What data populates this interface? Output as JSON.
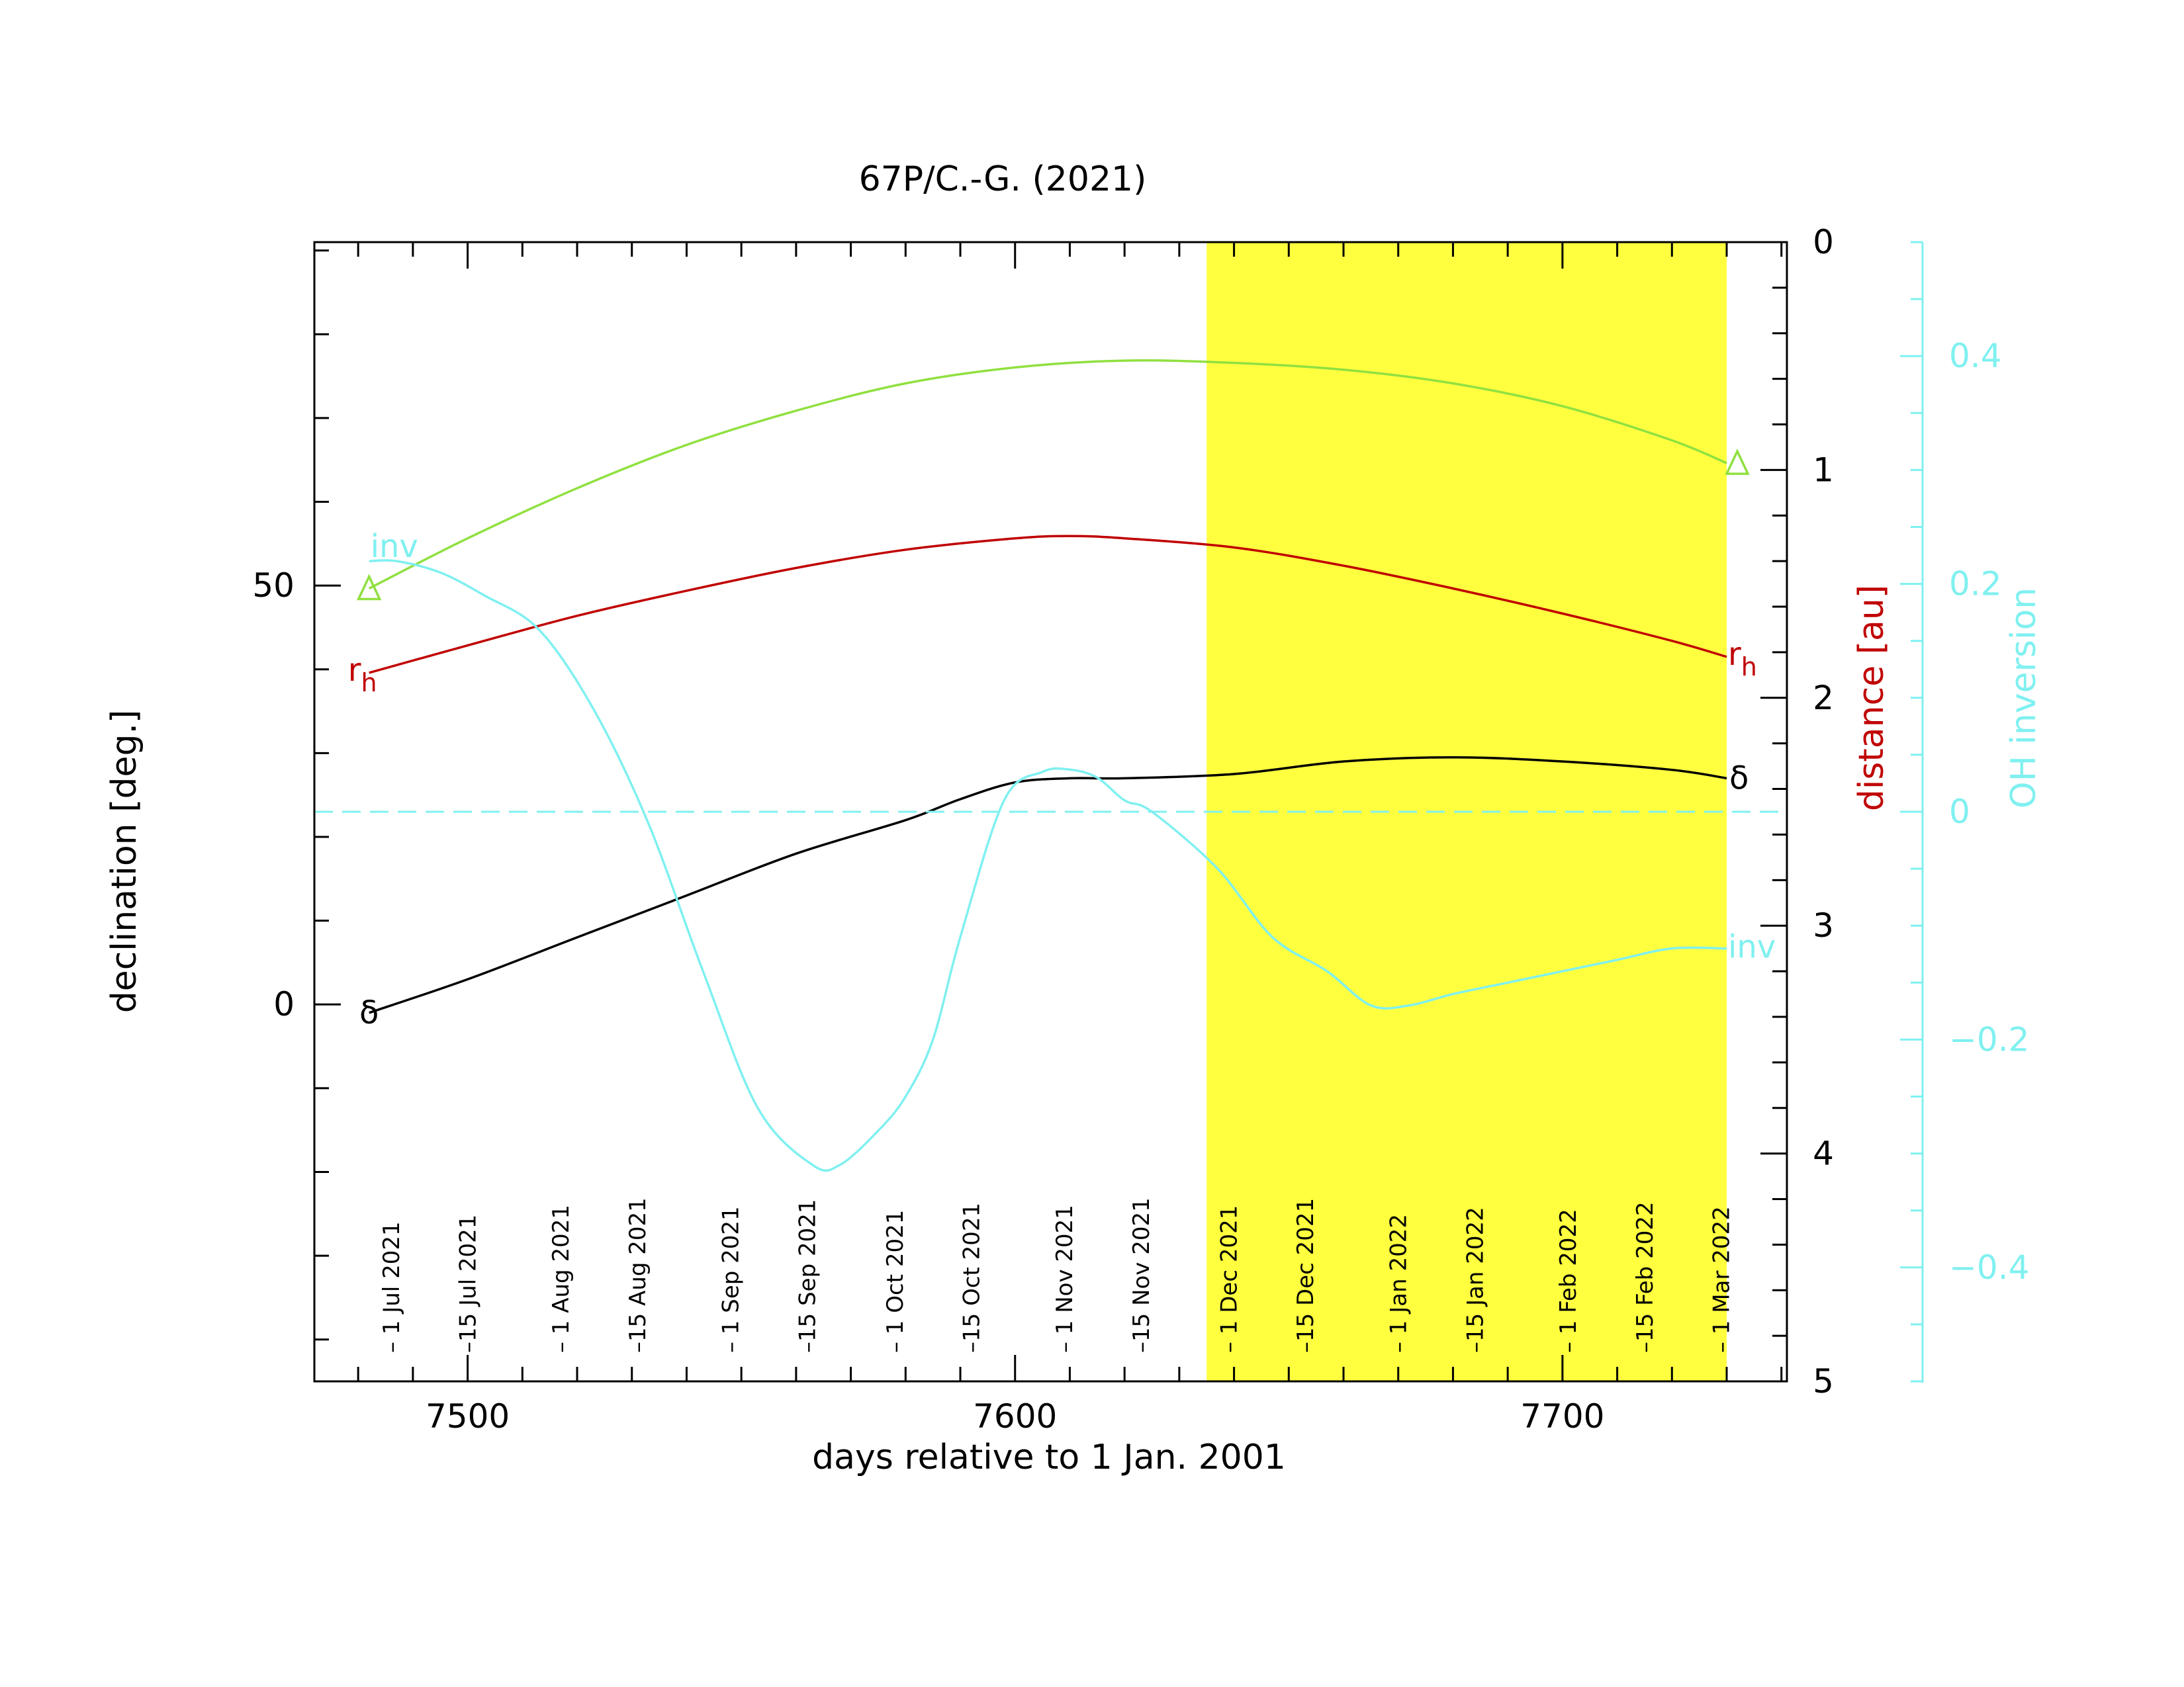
{
  "chart_data": {
    "type": "line",
    "title": "67P/C.-G. (2021)",
    "xlabel": "days relative to 1 Jan. 2001",
    "ylabel_left": "declination [deg.]",
    "ylabel_right_distance": "distance [au]",
    "ylabel_right_oh": "OH inversion",
    "xlim": [
      7472,
      7741
    ],
    "ylim_left": [
      -45,
      91
    ],
    "ylim_distance": [
      0,
      5
    ],
    "ylim_oh": [
      -0.5,
      0.5
    ],
    "distance_axis_inverted": true,
    "x_ticks": [
      7500,
      7600,
      7700
    ],
    "left_y_ticks": [
      0,
      50
    ],
    "distance_ticks": [
      0,
      1,
      2,
      3,
      4,
      5
    ],
    "oh_ticks": [
      0.4,
      0.2,
      0,
      -0.2,
      -0.4
    ],
    "oh_tick_labels": [
      "0.4",
      "0.2",
      "0",
      "−0.2",
      "−0.4"
    ],
    "highlight_range": [
      7635,
      7730
    ],
    "highlight_color": "#ffff40",
    "date_labels": [
      {
        "x": 7486,
        "label": "– 1 Jul 2021"
      },
      {
        "x": 7500,
        "label": "–15 Jul 2021"
      },
      {
        "x": 7517,
        "label": "– 1 Aug 2021"
      },
      {
        "x": 7531,
        "label": "–15 Aug 2021"
      },
      {
        "x": 7548,
        "label": "– 1 Sep 2021"
      },
      {
        "x": 7562,
        "label": "–15 Sep 2021"
      },
      {
        "x": 7578,
        "label": "– 1 Oct 2021"
      },
      {
        "x": 7592,
        "label": "–15 Oct 2021"
      },
      {
        "x": 7609,
        "label": "– 1 Nov 2021"
      },
      {
        "x": 7623,
        "label": "–15 Nov 2021"
      },
      {
        "x": 7639,
        "label": "– 1 Dec 2021"
      },
      {
        "x": 7653,
        "label": "–15 Dec 2021"
      },
      {
        "x": 7670,
        "label": "– 1 Jan 2022"
      },
      {
        "x": 7684,
        "label": "–15 Jan 2022"
      },
      {
        "x": 7701,
        "label": "– 1 Feb 2022"
      },
      {
        "x": 7715,
        "label": "–15 Feb 2022"
      },
      {
        "x": 7729,
        "label": "– 1 Mar 2022"
      }
    ],
    "series": [
      {
        "name": "Δ",
        "axis": "distance",
        "color": "#90e040",
        "x": [
          7482,
          7500,
          7520,
          7540,
          7560,
          7580,
          7600,
          7620,
          7640,
          7660,
          7680,
          7700,
          7720,
          7730
        ],
        "y": [
          1.52,
          1.3,
          1.08,
          0.89,
          0.74,
          0.62,
          0.55,
          0.52,
          0.53,
          0.56,
          0.62,
          0.72,
          0.87,
          0.97
        ],
        "start_label": "Δ",
        "end_label": "Δ",
        "marker": "triangle"
      },
      {
        "name": "rₕ",
        "axis": "distance",
        "color": "#c00000",
        "x": [
          7482,
          7500,
          7520,
          7540,
          7560,
          7580,
          7600,
          7610,
          7620,
          7640,
          7660,
          7680,
          7700,
          7720,
          7730
        ],
        "y": [
          1.89,
          1.77,
          1.64,
          1.53,
          1.43,
          1.35,
          1.3,
          1.29,
          1.3,
          1.34,
          1.42,
          1.52,
          1.63,
          1.75,
          1.82
        ],
        "start_label": "r",
        "start_sub": "h",
        "end_label": "r",
        "end_sub": "h"
      },
      {
        "name": "δ",
        "axis": "left",
        "color": "#000000",
        "x": [
          7482,
          7500,
          7520,
          7540,
          7560,
          7580,
          7590,
          7600,
          7610,
          7620,
          7640,
          7660,
          7680,
          7700,
          7720,
          7730
        ],
        "y": [
          -1,
          3,
          8,
          13,
          18,
          22,
          24.5,
          26.5,
          27,
          27,
          27.5,
          29,
          29.5,
          29,
          28,
          27
        ],
        "start_label": "δ",
        "end_label": "δ"
      },
      {
        "name": "inv",
        "axis": "oh",
        "color": "#80f0f0",
        "x": [
          7482,
          7487,
          7495,
          7503,
          7513,
          7523,
          7533,
          7543,
          7553,
          7563,
          7568,
          7575,
          7580,
          7585,
          7590,
          7598,
          7605,
          7610,
          7615,
          7620,
          7625,
          7637,
          7647,
          7657,
          7665,
          7672,
          7680,
          7690,
          7700,
          7710,
          7720,
          7730
        ],
        "y": [
          0.22,
          0.22,
          0.21,
          0.19,
          0.16,
          0.09,
          -0.01,
          -0.14,
          -0.26,
          -0.31,
          -0.31,
          -0.28,
          -0.25,
          -0.2,
          -0.11,
          0.01,
          0.035,
          0.037,
          0.03,
          0.01,
          0.0,
          -0.05,
          -0.11,
          -0.14,
          -0.17,
          -0.17,
          -0.16,
          -0.15,
          -0.14,
          -0.13,
          -0.12,
          -0.12
        ],
        "start_label": "inv",
        "end_label": "inv",
        "zero_line": true
      }
    ]
  }
}
